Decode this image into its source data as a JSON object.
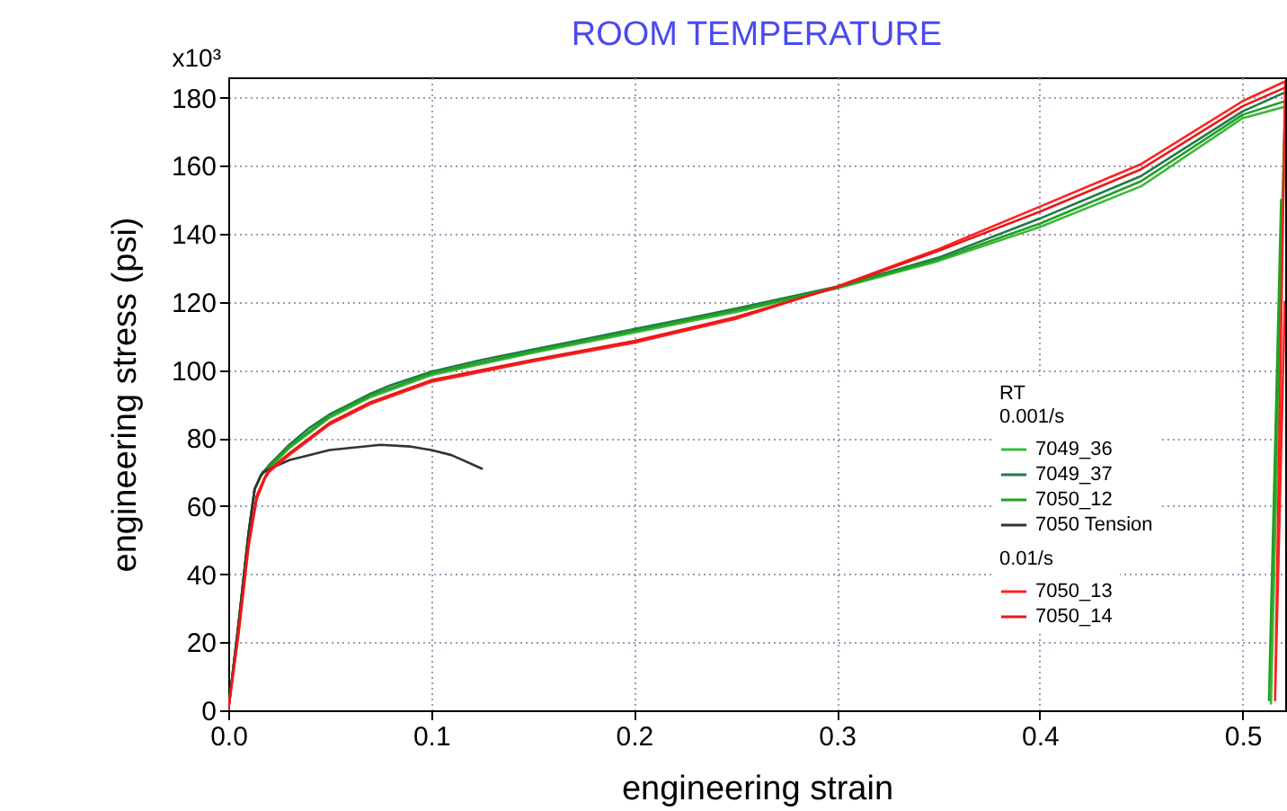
{
  "chart_data": {
    "type": "line",
    "title": "ROOM TEMPERATURE",
    "xlabel": "engineering strain",
    "ylabel": "engineering stress (psi)",
    "legend_title": "RT",
    "annotations": [
      "0.001/s",
      "0.01/s",
      "x10³"
    ],
    "xlim": [
      0,
      0.521
    ],
    "xticks": [
      {
        "value": 0,
        "label": "0.0"
      },
      0.1,
      0.2,
      0.3,
      0.4,
      0.5
    ],
    "ylim": [
      0,
      186
    ],
    "yticks": [
      0,
      20,
      40,
      60,
      80,
      100,
      120,
      140,
      160,
      180
    ],
    "grid": true,
    "legend": "right",
    "line_style": "solid",
    "series": [
      {
        "name": "7049_36",
        "color": "#3cb83c",
        "x": [
          0,
          0.005,
          0.01,
          0.013,
          0.016,
          0.02,
          0.03,
          0.05,
          0.07,
          0.1,
          0.15,
          0.2,
          0.25,
          0.3,
          0.35,
          0.4,
          0.45,
          0.5,
          0.521,
          0.514,
          0.5205
        ],
        "values": [
          0,
          25,
          52,
          65,
          69,
          71,
          77,
          86,
          92,
          98.5,
          105,
          111,
          117,
          124,
          132,
          142,
          154,
          174,
          177.4,
          2,
          160
        ]
      },
      {
        "name": "7049_37",
        "color": "#1e7a4a",
        "x": [
          0,
          0.005,
          0.01,
          0.013,
          0.016,
          0.02,
          0.03,
          0.04,
          0.05,
          0.06,
          0.07,
          0.08,
          0.1,
          0.125,
          0.15,
          0.175,
          0.2,
          0.25,
          0.3,
          0.35,
          0.4,
          0.45,
          0.5,
          0.521
        ],
        "values": [
          0,
          25,
          52,
          65,
          69,
          72,
          78,
          83,
          87,
          90,
          93,
          95.5,
          99.5,
          103,
          106,
          109,
          112,
          118,
          124.5,
          133,
          144.5,
          157,
          176,
          181.6
        ]
      },
      {
        "name": "7050_12",
        "color": "#22a022",
        "x": [
          0,
          0.005,
          0.01,
          0.013,
          0.016,
          0.02,
          0.03,
          0.05,
          0.07,
          0.1,
          0.15,
          0.2,
          0.25,
          0.3,
          0.35,
          0.4,
          0.45,
          0.5,
          0.521,
          0.513,
          0.519
        ],
        "values": [
          0,
          25,
          52,
          65,
          69,
          71.5,
          77.5,
          86.5,
          92.5,
          99,
          105.5,
          111.5,
          117.5,
          124.2,
          132.5,
          143,
          155.5,
          175,
          179,
          3,
          150
        ]
      },
      {
        "name": "7050 Tension",
        "color": "#333333",
        "x": [
          0,
          0.005,
          0.01,
          0.013,
          0.017,
          0.03,
          0.05,
          0.075,
          0.09,
          0.1,
          0.11,
          0.125
        ],
        "values": [
          0,
          25,
          52,
          65,
          70,
          73.5,
          76.5,
          78,
          77.5,
          76.5,
          75,
          71
        ]
      },
      {
        "name": "7050_13",
        "color": "#ff2020",
        "x": [
          0,
          0.005,
          0.01,
          0.014,
          0.018,
          0.02,
          0.03,
          0.05,
          0.07,
          0.1,
          0.15,
          0.2,
          0.25,
          0.3,
          0.35,
          0.4,
          0.45,
          0.5,
          0.521,
          0.516,
          0.5208
        ],
        "values": [
          0,
          22,
          48,
          62,
          68,
          70,
          75,
          84,
          90,
          96.5,
          102.5,
          108,
          115,
          124.5,
          135.5,
          148,
          160.5,
          179,
          184.8,
          3,
          120
        ]
      },
      {
        "name": "7050_14",
        "color": "#e81818",
        "x": [
          0,
          0.005,
          0.01,
          0.014,
          0.018,
          0.02,
          0.03,
          0.05,
          0.07,
          0.1,
          0.15,
          0.2,
          0.25,
          0.3,
          0.35,
          0.4,
          0.45,
          0.5,
          0.521
        ],
        "values": [
          0,
          23,
          49,
          63,
          68.5,
          70.5,
          75.5,
          84.5,
          90.5,
          97,
          103,
          108.5,
          115.5,
          124.3,
          135,
          146.5,
          159,
          177.5,
          183
        ]
      }
    ]
  }
}
